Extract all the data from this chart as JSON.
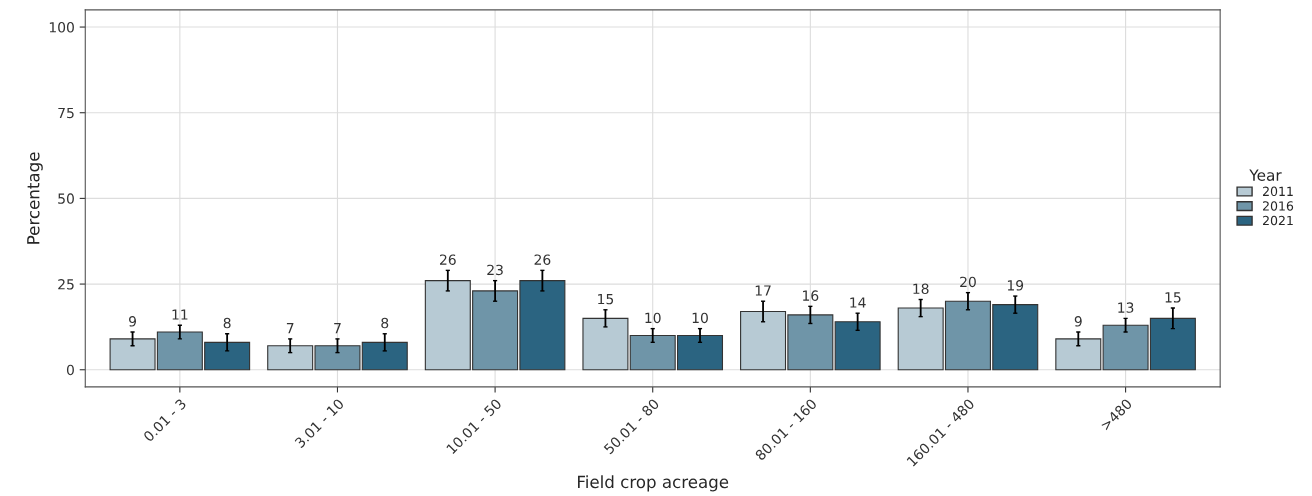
{
  "chart_data": {
    "type": "bar",
    "xlabel": "Field crop acreage",
    "ylabel": "Percentage",
    "legend_title": "Year",
    "categories": [
      "0.01 - 3",
      "3.01 - 10",
      "10.01 - 50",
      "50.01 - 80",
      "80.01 - 160",
      "160.01 - 480",
      ">480"
    ],
    "series": [
      {
        "name": "2011",
        "color": "#b7cad4",
        "values": [
          9,
          7,
          26,
          15,
          17,
          18,
          9
        ],
        "errors": [
          2,
          2,
          3,
          2.5,
          3,
          2.5,
          2
        ]
      },
      {
        "name": "2016",
        "color": "#6f95a8",
        "values": [
          11,
          7,
          23,
          10,
          16,
          20,
          13
        ],
        "errors": [
          2,
          2,
          3,
          2,
          2.5,
          2.5,
          2
        ]
      },
      {
        "name": "2021",
        "color": "#2b6481",
        "values": [
          8,
          8,
          26,
          10,
          14,
          19,
          15
        ],
        "errors": [
          2.5,
          2.5,
          3,
          2,
          2.5,
          2.5,
          3
        ]
      }
    ],
    "ylim": [
      -5,
      105
    ],
    "yticks": [
      0,
      25,
      50,
      75,
      100
    ],
    "grid": true,
    "legend": "right",
    "data_labels": true
  }
}
